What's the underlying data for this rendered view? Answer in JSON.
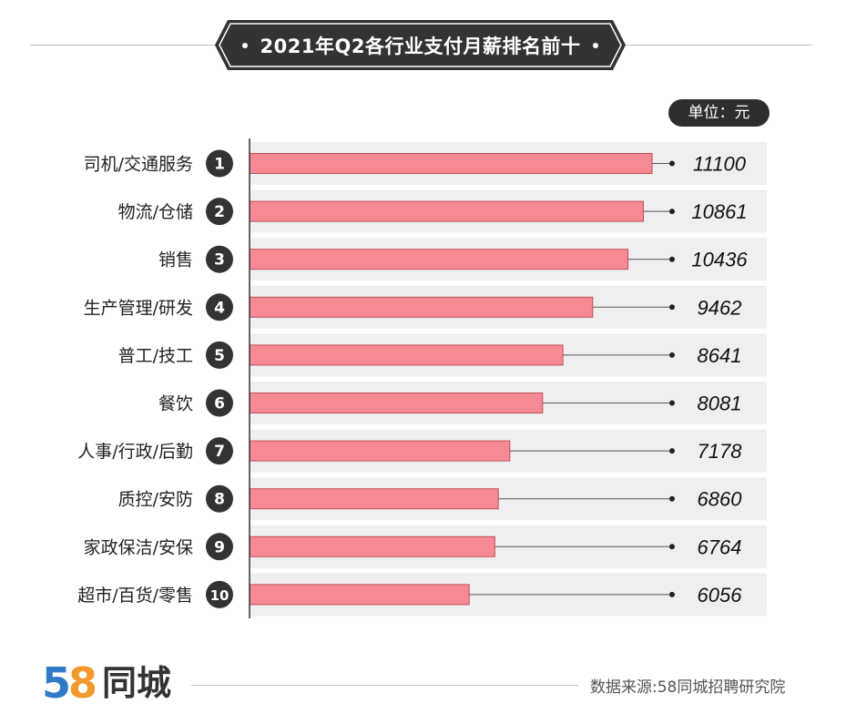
{
  "header": {
    "title": "2021年Q2各行业支付月薪排名前十",
    "unit": "单位：元"
  },
  "colors": {
    "bar_fill": "#f58a94",
    "bar_stroke": "#c0505c",
    "row_bg": "#efefef",
    "badge": "#333333",
    "title_bg": "#333333"
  },
  "chart_data": {
    "type": "bar",
    "orientation": "horizontal",
    "categories": [
      "司机/交通服务",
      "物流/仓储",
      "销售",
      "生产管理/研发",
      "普工/技工",
      "餐饮",
      "人事/行政/后勤",
      "质控/安防",
      "家政保洁/安保",
      "超市/百货/零售"
    ],
    "ranks": [
      "1",
      "2",
      "3",
      "4",
      "5",
      "6",
      "7",
      "8",
      "9",
      "10"
    ],
    "values": [
      11100,
      10861,
      10436,
      9462,
      8641,
      8081,
      7178,
      6860,
      6764,
      6056
    ],
    "value_labels": [
      "11100",
      "10861",
      "10436",
      "9462",
      "8641",
      "8081",
      "7178",
      "6860",
      "6764",
      "6056"
    ],
    "xlim": [
      0,
      13000
    ],
    "grid": false,
    "legend": "none"
  },
  "footer": {
    "source": "数据来源:58同城招聘研究院",
    "logo_number_1": "5",
    "logo_number_2": "8",
    "logo_text": "同城"
  }
}
